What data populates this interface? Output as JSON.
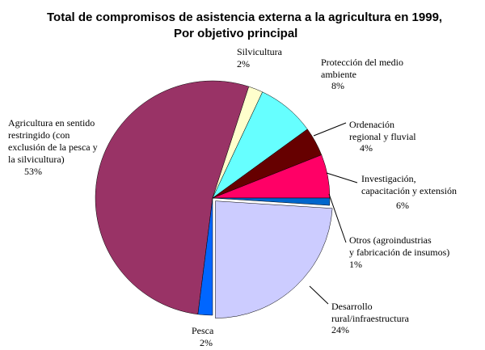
{
  "chart_data": {
    "type": "pie",
    "title": [
      "Total de compromisos de asistencia externa a la agricultura en 1999,",
      "Por objetivo principal"
    ],
    "categories": [
      [
        "Agricultura en sentido",
        "restringido (con",
        "exclusión de la pesca y",
        "la silvicultura)"
      ],
      [
        "Silvicultura"
      ],
      [
        "Protección del medio",
        "ambiente"
      ],
      [
        "Ordenación",
        "regional y fluvial"
      ],
      [
        "Investigación,",
        "capacitación y extensión"
      ],
      [
        "Otros (agroindustrias",
        "y fabricación de insumos)"
      ],
      [
        "Desarrollo",
        "rural/infraestructura"
      ],
      [
        "Pesca"
      ]
    ],
    "values": [
      53,
      2,
      8,
      4,
      6,
      1,
      24,
      2
    ],
    "value_labels": [
      "53%",
      "2%",
      "8%",
      "4%",
      "6%",
      "1%",
      "24%",
      "2%"
    ],
    "colors": [
      "#993366",
      "#ffffcc",
      "#66ffff",
      "#660000",
      "#ff0066",
      "#0066cc",
      "#ccccff",
      "#0066ff"
    ]
  }
}
